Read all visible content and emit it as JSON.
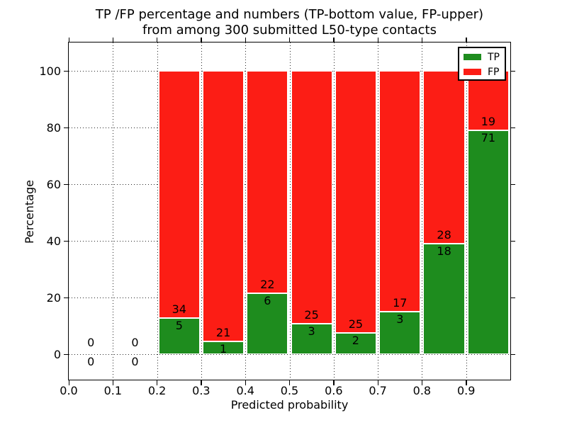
{
  "title": {
    "line1": "TP /FP percentage and numbers (TP-bottom value, FP-upper)",
    "line2": "from among 300 submitted L50-type contacts"
  },
  "axes": {
    "xlabel": "Predicted probability",
    "ylabel": "Percentage",
    "xticks": [
      {
        "value": 0.0,
        "label": "0.0"
      },
      {
        "value": 0.1,
        "label": "0.1"
      },
      {
        "value": 0.2,
        "label": "0.2"
      },
      {
        "value": 0.3,
        "label": "0.3"
      },
      {
        "value": 0.4,
        "label": "0.4"
      },
      {
        "value": 0.5,
        "label": "0.5"
      },
      {
        "value": 0.6,
        "label": "0.6"
      },
      {
        "value": 0.7,
        "label": "0.7"
      },
      {
        "value": 0.8,
        "label": "0.8"
      },
      {
        "value": 0.9,
        "label": "0.9"
      }
    ],
    "yticks": [
      {
        "value": 0,
        "label": "0"
      },
      {
        "value": 20,
        "label": "20"
      },
      {
        "value": 40,
        "label": "40"
      },
      {
        "value": 60,
        "label": "60"
      },
      {
        "value": 80,
        "label": "80"
      },
      {
        "value": 100,
        "label": "100"
      }
    ]
  },
  "legend": {
    "items": [
      {
        "label": "TP",
        "color": "#1e8c1e"
      },
      {
        "label": "FP",
        "color": "#fc1d15"
      }
    ]
  },
  "colors": {
    "tp": "#1e8c1e",
    "fp": "#fc1d15",
    "grid": "rgba(0,0,0,0.85)",
    "text": "#000000",
    "background": "#ffffff"
  },
  "chart_data": {
    "type": "bar",
    "stacked": true,
    "title": "TP /FP percentage and numbers (TP-bottom value, FP-upper) from among 300 submitted L50-type contacts",
    "xlabel": "Predicted probability",
    "ylabel": "Percentage",
    "xlim": [
      0.0,
      1.0
    ],
    "ylim": [
      -10,
      110
    ],
    "grid": true,
    "legend_position": "upper right",
    "total_contacts": 300,
    "bin_width": 0.1,
    "bins": [
      {
        "x_start": 0.0,
        "x_end": 0.1,
        "tp_count": 0,
        "fp_count": 0,
        "tp_pct": 0,
        "stack_top_pct": 0
      },
      {
        "x_start": 0.1,
        "x_end": 0.2,
        "tp_count": 0,
        "fp_count": 0,
        "tp_pct": 0,
        "stack_top_pct": 0
      },
      {
        "x_start": 0.2,
        "x_end": 0.3,
        "tp_count": 5,
        "fp_count": 34,
        "tp_pct": 12.82,
        "stack_top_pct": 100
      },
      {
        "x_start": 0.3,
        "x_end": 0.4,
        "tp_count": 1,
        "fp_count": 21,
        "tp_pct": 4.55,
        "stack_top_pct": 100
      },
      {
        "x_start": 0.4,
        "x_end": 0.5,
        "tp_count": 6,
        "fp_count": 22,
        "tp_pct": 21.43,
        "stack_top_pct": 100
      },
      {
        "x_start": 0.5,
        "x_end": 0.6,
        "tp_count": 3,
        "fp_count": 25,
        "tp_pct": 10.71,
        "stack_top_pct": 100
      },
      {
        "x_start": 0.6,
        "x_end": 0.7,
        "tp_count": 2,
        "fp_count": 25,
        "tp_pct": 7.41,
        "stack_top_pct": 100
      },
      {
        "x_start": 0.7,
        "x_end": 0.8,
        "tp_count": 3,
        "fp_count": 17,
        "tp_pct": 15.0,
        "stack_top_pct": 100
      },
      {
        "x_start": 0.8,
        "x_end": 0.9,
        "tp_count": 18,
        "fp_count": 28,
        "tp_pct": 39.13,
        "stack_top_pct": 100
      },
      {
        "x_start": 0.9,
        "x_end": 1.0,
        "tp_count": 71,
        "fp_count": 19,
        "tp_pct": 78.89,
        "stack_top_pct": 100
      }
    ],
    "series": [
      {
        "name": "TP",
        "color": "#1e8c1e",
        "counts": [
          0,
          0,
          5,
          1,
          6,
          3,
          2,
          3,
          18,
          71
        ],
        "values_pct": [
          0,
          0,
          12.82,
          4.55,
          21.43,
          10.71,
          7.41,
          15.0,
          39.13,
          78.89
        ]
      },
      {
        "name": "FP",
        "color": "#fc1d15",
        "counts": [
          0,
          0,
          34,
          21,
          22,
          25,
          25,
          17,
          28,
          19
        ],
        "values_pct": [
          0,
          0,
          87.18,
          95.45,
          78.57,
          89.29,
          92.59,
          85.0,
          60.87,
          21.11
        ]
      }
    ]
  }
}
